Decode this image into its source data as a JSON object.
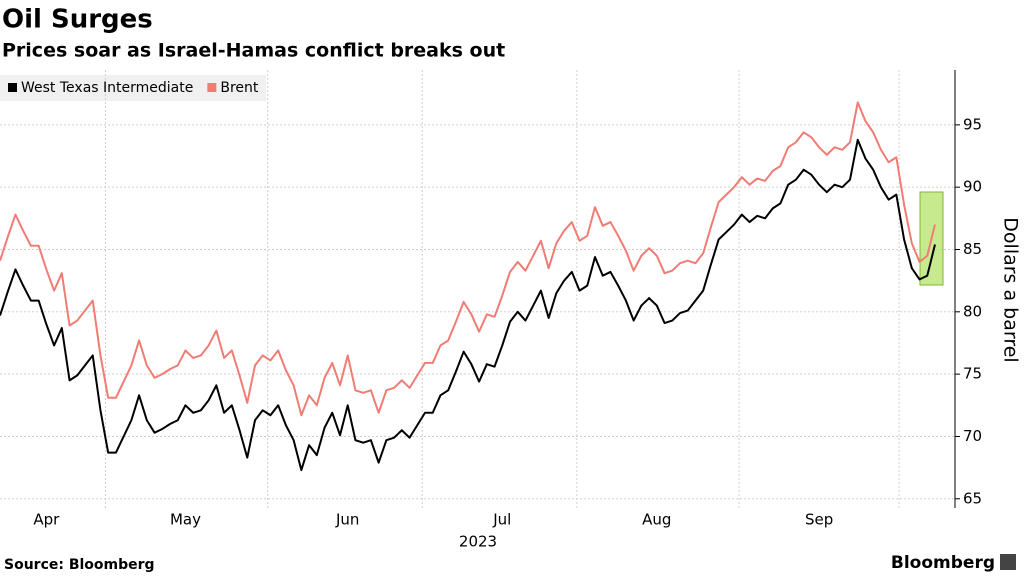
{
  "chart_data": {
    "type": "line",
    "title": "Oil Surges",
    "subtitle": "Prices soar as Israel-Hamas conflict breaks out",
    "x_label": "2023",
    "y_label": "Dollars a barrel",
    "source": "Source: Bloomberg",
    "brand": "Bloomberg",
    "categories": [
      null,
      null,
      null,
      null,
      null,
      null,
      "Apr",
      null,
      null,
      null,
      null,
      null,
      null,
      null,
      null,
      null,
      null,
      null,
      null,
      null,
      null,
      null,
      null,
      null,
      "May",
      null,
      null,
      null,
      null,
      null,
      null,
      null,
      null,
      null,
      null,
      null,
      null,
      null,
      null,
      null,
      null,
      null,
      null,
      null,
      null,
      "Jun",
      null,
      null,
      null,
      null,
      null,
      null,
      null,
      null,
      null,
      null,
      null,
      null,
      null,
      null,
      null,
      null,
      null,
      null,
      null,
      "Jul",
      null,
      null,
      null,
      null,
      null,
      null,
      null,
      null,
      null,
      null,
      null,
      null,
      null,
      null,
      null,
      null,
      null,
      null,
      null,
      "Aug",
      null,
      null,
      null,
      null,
      null,
      null,
      null,
      null,
      null,
      null,
      null,
      null,
      null,
      null,
      null,
      null,
      null,
      null,
      null,
      null,
      "Sep",
      null,
      null,
      null,
      null,
      null,
      null,
      null,
      null,
      null,
      null,
      null,
      null,
      null,
      null,
      null
    ],
    "series": [
      {
        "name": "West Texas Intermediate",
        "color": "#000000",
        "values": [
          79.7,
          81.6,
          83.4,
          82.1,
          80.9,
          80.9,
          79.0,
          77.3,
          78.7,
          74.5,
          74.9,
          75.7,
          76.5,
          72.1,
          68.7,
          68.7,
          70.0,
          71.3,
          73.3,
          71.3,
          70.3,
          70.6,
          71,
          71.3,
          72.5,
          71.9,
          72.1,
          72.9,
          74.1,
          71.9,
          72.5,
          70.5,
          68.3,
          71.3,
          72.1,
          71.7,
          72.5,
          70.9,
          69.7,
          67.3,
          69.3,
          68.5,
          70.7,
          71.9,
          70.1,
          72.5,
          69.7,
          69.5,
          69.7,
          67.9,
          69.7,
          69.9,
          70.5,
          69.9,
          70.9,
          71.9,
          71.9,
          73.3,
          73.7,
          75.2,
          76.8,
          75.8,
          74.4,
          75.8,
          75.6,
          77.3,
          79.2,
          80.0,
          79.3,
          80.5,
          81.7,
          79.5,
          81.5,
          82.5,
          83.2,
          81.7,
          82.1,
          84.4,
          82.9,
          83.2,
          82.1,
          80.9,
          79.3,
          80.5,
          81.1,
          80.5,
          79.1,
          79.3,
          79.9,
          80.1,
          80.9,
          81.7,
          83.8,
          85.8,
          86.4,
          87,
          87.8,
          87.2,
          87.7,
          87.5,
          88.3,
          88.7,
          90.2,
          90.6,
          91.4,
          91,
          90.2,
          89.6,
          90.2,
          90,
          90.6,
          93.8,
          92.3,
          91.4,
          90,
          89,
          89.4,
          85.8,
          83.5,
          82.6,
          82.9,
          85.4
        ]
      },
      {
        "name": "Brent",
        "color": "#f07c74",
        "values": [
          84.1,
          86.0,
          87.8,
          86.5,
          85.3,
          85.3,
          83.4,
          81.7,
          83.1,
          78.9,
          79.3,
          80.1,
          80.9,
          76.5,
          73.1,
          73.1,
          74.4,
          75.7,
          77.7,
          75.7,
          74.7,
          75.0,
          75.4,
          75.7,
          76.9,
          76.3,
          76.5,
          77.3,
          78.5,
          76.3,
          76.9,
          74.9,
          72.7,
          75.7,
          76.5,
          76.1,
          76.9,
          75.3,
          74.1,
          71.7,
          73.3,
          72.5,
          74.7,
          75.9,
          74.1,
          76.5,
          73.7,
          73.5,
          73.7,
          71.9,
          73.7,
          73.9,
          74.5,
          73.9,
          74.9,
          75.9,
          75.9,
          77.3,
          77.7,
          79.2,
          80.8,
          79.8,
          78.4,
          79.8,
          79.6,
          81.3,
          83.2,
          84.0,
          83.3,
          84.5,
          85.7,
          83.5,
          85.5,
          86.5,
          87.2,
          85.7,
          86.1,
          88.4,
          86.9,
          87.2,
          86.1,
          84.9,
          83.3,
          84.5,
          85.1,
          84.5,
          83.1,
          83.3,
          83.9,
          84.1,
          83.9,
          84.7,
          86.8,
          88.8,
          89.4,
          90.0,
          90.8,
          90.2,
          90.7,
          90.5,
          91.3,
          91.7,
          93.2,
          93.6,
          94.4,
          94.0,
          93.2,
          92.6,
          93.2,
          93.0,
          93.6,
          96.8,
          95.3,
          94.4,
          93.0,
          92.0,
          92.4,
          88.6,
          85.5,
          84.0,
          84.5,
          87.0
        ]
      }
    ],
    "ylim": [
      64.5,
      99
    ],
    "yticks": [
      65,
      70,
      75,
      80,
      85,
      90,
      95
    ],
    "grid": true,
    "legend": "top-left"
  }
}
